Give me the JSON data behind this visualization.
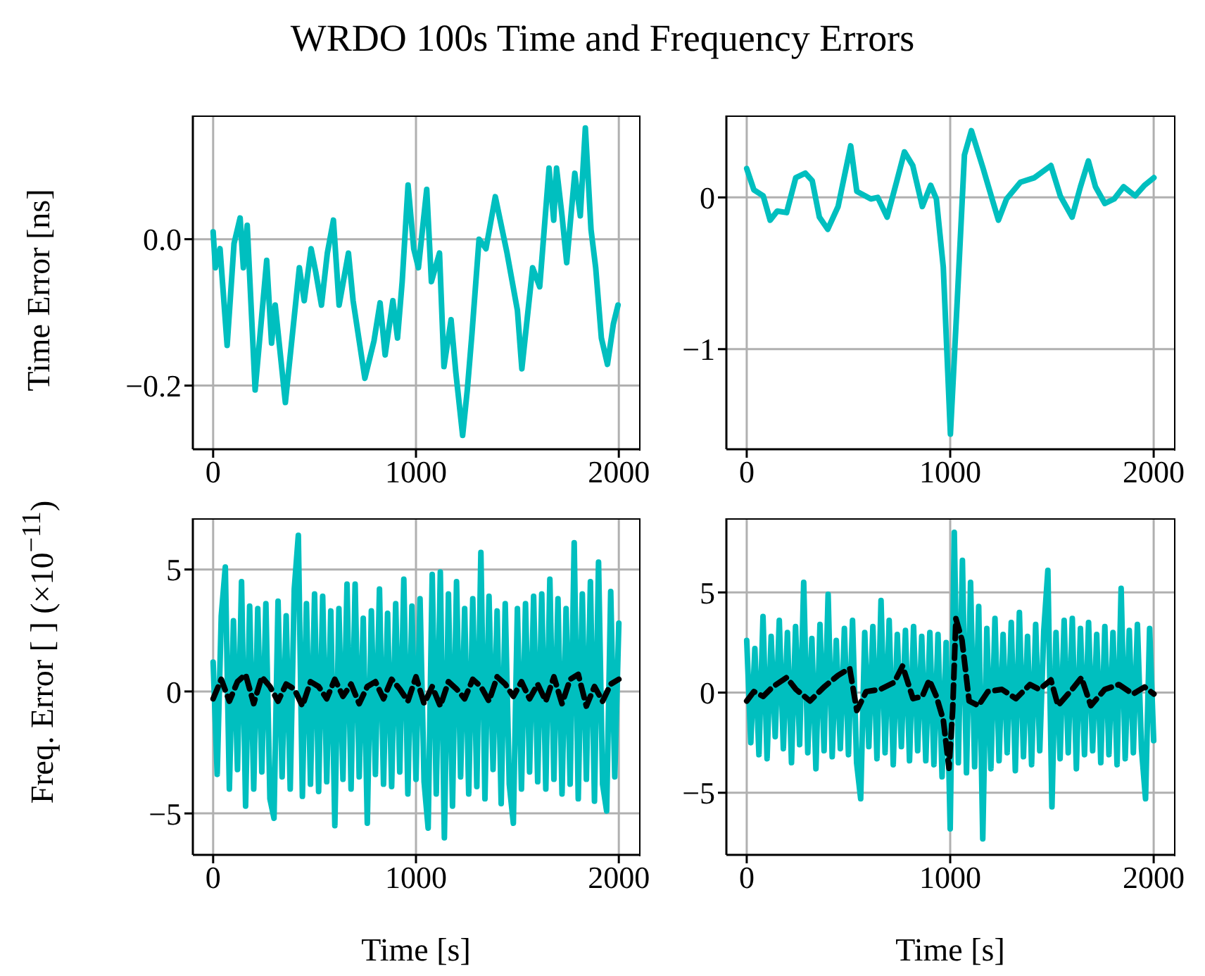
{
  "chart_data": [
    {
      "type": "line",
      "title": "WRDO 100s Time and Frequency Errors",
      "ylabel": "Time Error [ns]",
      "xlim": [
        -100,
        2100
      ],
      "xticks": [
        0,
        1000,
        2000
      ],
      "ylim": [
        -0.287,
        0.169
      ],
      "yticks": [
        {
          "value": -0.2,
          "label": "−0.2"
        },
        {
          "value": 0,
          "label": "0.0"
        }
      ],
      "grid": true,
      "series": [
        {
          "color": "#00bfbf",
          "x": [
            0,
            11,
            34,
            69,
            103,
            133,
            149,
            168,
            207,
            264,
            288,
            306,
            356,
            425,
            449,
            483,
            506,
            534,
            563,
            593,
            621,
            667,
            690,
            748,
            793,
            823,
            848,
            886,
            909,
            932,
            961,
            989,
            1012,
            1053,
            1076,
            1116,
            1138,
            1173,
            1196,
            1230,
            1253,
            1276,
            1311,
            1345,
            1391,
            1449,
            1500,
            1522,
            1575,
            1610,
            1656,
            1679,
            1693,
            1720,
            1743,
            1783,
            1810,
            1835,
            1863,
            1886,
            1914,
            1944,
            1973,
            1996
          ],
          "values": [
            0.01,
            -0.039,
            -0.013,
            -0.145,
            -0.006,
            0.029,
            -0.039,
            0.019,
            -0.206,
            -0.029,
            -0.142,
            -0.09,
            -0.223,
            -0.039,
            -0.084,
            -0.013,
            -0.045,
            -0.09,
            -0.019,
            0.026,
            -0.09,
            -0.019,
            -0.084,
            -0.19,
            -0.139,
            -0.087,
            -0.158,
            -0.084,
            -0.135,
            -0.058,
            0.074,
            -0.013,
            -0.039,
            0.068,
            -0.058,
            -0.019,
            -0.174,
            -0.11,
            -0.181,
            -0.268,
            -0.206,
            -0.129,
            0.0,
            -0.013,
            0.058,
            -0.019,
            -0.097,
            -0.177,
            -0.039,
            -0.065,
            0.097,
            0.026,
            0.097,
            0.032,
            -0.032,
            0.09,
            0.032,
            0.152,
            0.013,
            -0.039,
            -0.135,
            -0.171,
            -0.116,
            -0.09
          ]
        }
      ]
    },
    {
      "type": "line",
      "xlim": [
        -100,
        2100
      ],
      "xticks": [
        0,
        1000,
        2000
      ],
      "ylim": [
        -1.66,
        0.54
      ],
      "yticks": [
        -1,
        0
      ],
      "grid": true,
      "series": [
        {
          "color": "#00bfbf",
          "x": [
            0,
            35,
            81,
            115,
            150,
            196,
            241,
            288,
            322,
            357,
            398,
            449,
            483,
            511,
            541,
            610,
            644,
            690,
            736,
            775,
            816,
            863,
            904,
            932,
            966,
            1001,
            1035,
            1070,
            1104,
            1162,
            1208,
            1237,
            1277,
            1345,
            1414,
            1495,
            1541,
            1599,
            1640,
            1679,
            1714,
            1760,
            1806,
            1852,
            1909,
            1955,
            2001
          ],
          "values": [
            0.19,
            0.05,
            0.01,
            -0.15,
            -0.09,
            -0.1,
            0.13,
            0.16,
            0.11,
            -0.13,
            -0.21,
            -0.06,
            0.16,
            0.34,
            0.04,
            -0.01,
            0.0,
            -0.13,
            0.1,
            0.3,
            0.21,
            -0.06,
            0.08,
            -0.01,
            -0.46,
            -1.56,
            -0.67,
            0.28,
            0.44,
            0.19,
            -0.02,
            -0.15,
            -0.01,
            0.1,
            0.13,
            0.21,
            0.01,
            -0.13,
            0.07,
            0.24,
            0.07,
            -0.04,
            -0.01,
            0.07,
            0.01,
            0.08,
            0.13
          ]
        }
      ]
    },
    {
      "type": "line",
      "ylabel": "Freq. Error [ ] (×10$^{−11}$)",
      "xlabel": "Time [s]",
      "xlim": [
        -100,
        2100
      ],
      "xticks": [
        0,
        1000,
        2000
      ],
      "ylim": [
        -6.7,
        7.1
      ],
      "yticks": [
        -5,
        0,
        5
      ],
      "grid": true,
      "series": [
        {
          "color": "#00bfbf",
          "x": [
            0,
            20,
            40,
            60,
            80,
            100,
            120,
            140,
            160,
            180,
            200,
            220,
            240,
            260,
            280,
            300,
            320,
            340,
            360,
            380,
            400,
            420,
            440,
            460,
            480,
            500,
            520,
            540,
            560,
            580,
            600,
            620,
            640,
            660,
            680,
            700,
            720,
            740,
            760,
            780,
            800,
            820,
            840,
            860,
            880,
            900,
            920,
            940,
            960,
            980,
            1000,
            1020,
            1040,
            1060,
            1080,
            1100,
            1120,
            1140,
            1160,
            1180,
            1200,
            1220,
            1240,
            1260,
            1280,
            1300,
            1320,
            1340,
            1360,
            1380,
            1400,
            1420,
            1440,
            1460,
            1480,
            1500,
            1520,
            1540,
            1560,
            1580,
            1600,
            1620,
            1640,
            1660,
            1680,
            1700,
            1720,
            1740,
            1760,
            1780,
            1800,
            1820,
            1840,
            1860,
            1880,
            1900,
            1920,
            1940,
            1960,
            1980,
            2000
          ],
          "values": [
            1.2,
            -3.4,
            3.1,
            5.1,
            -4.0,
            2.9,
            -3.2,
            4.5,
            -4.7,
            3.5,
            -4.0,
            3.4,
            -3.3,
            3.6,
            -4.4,
            -5.2,
            3.7,
            -3.5,
            3.1,
            -4.0,
            4.2,
            6.4,
            -4.3,
            3.6,
            -3.8,
            4.0,
            -4.1,
            3.9,
            -3.7,
            3.3,
            -5.5,
            3.4,
            -3.6,
            4.4,
            -4.0,
            4.4,
            -3.5,
            3.0,
            -5.4,
            3.3,
            -3.4,
            4.2,
            -3.8,
            3.2,
            -3.9,
            3.6,
            -3.3,
            4.6,
            -4.2,
            3.5,
            -3.6,
            3.8,
            -3.7,
            -5.6,
            4.8,
            -4.2,
            4.9,
            -6.0,
            4.0,
            -4.7,
            4.5,
            -3.5,
            3.4,
            -4.2,
            3.8,
            -3.9,
            5.7,
            -4.4,
            3.9,
            -3.2,
            3.3,
            -4.6,
            3.6,
            -3.8,
            -5.4,
            3.4,
            -4.0,
            3.6,
            -3.3,
            3.9,
            -3.7,
            4.0,
            -4.0,
            4.6,
            -3.6,
            3.8,
            -4.2,
            3.4,
            -3.8,
            6.1,
            -4.4,
            4.0,
            -3.6,
            4.5,
            -4.5,
            5.3,
            -3.8,
            -4.9,
            4.1,
            -3.5,
            2.8
          ]
        },
        {
          "color": "#000000",
          "line_style": "dashed",
          "x": [
            0,
            40,
            80,
            120,
            160,
            200,
            240,
            280,
            320,
            360,
            400,
            440,
            480,
            520,
            560,
            600,
            640,
            680,
            720,
            760,
            800,
            840,
            880,
            920,
            960,
            1000,
            1040,
            1080,
            1120,
            1160,
            1200,
            1240,
            1280,
            1320,
            1360,
            1400,
            1440,
            1480,
            1520,
            1560,
            1600,
            1640,
            1680,
            1720,
            1760,
            1800,
            1840,
            1880,
            1920,
            1960,
            2000
          ],
          "values": [
            -0.3,
            0.5,
            -0.4,
            0.4,
            0.7,
            -0.5,
            0.6,
            0.2,
            -0.4,
            0.3,
            0.1,
            -0.6,
            0.4,
            0.2,
            -0.3,
            0.5,
            -0.2,
            0.3,
            -0.5,
            0.2,
            0.4,
            -0.3,
            0.5,
            0.1,
            -0.4,
            0.6,
            -0.5,
            0.2,
            -0.6,
            0.4,
            0.1,
            -0.3,
            0.5,
            0.2,
            -0.4,
            0.6,
            0.3,
            -0.2,
            0.4,
            -0.3,
            0.3,
            -0.4,
            0.6,
            -0.5,
            0.5,
            0.7,
            -0.6,
            0.2,
            -0.4,
            0.3,
            0.5
          ]
        }
      ]
    },
    {
      "type": "line",
      "xlabel": "Time [s]",
      "xlim": [
        -100,
        2100
      ],
      "xticks": [
        0,
        1000,
        2000
      ],
      "ylim": [
        -8.1,
        8.7
      ],
      "yticks": [
        -5,
        0,
        5
      ],
      "grid": true,
      "series": [
        {
          "color": "#00bfbf",
          "x": [
            0,
            20,
            40,
            60,
            80,
            100,
            120,
            140,
            160,
            180,
            200,
            220,
            240,
            260,
            280,
            300,
            320,
            340,
            360,
            380,
            400,
            420,
            440,
            460,
            480,
            500,
            520,
            540,
            560,
            580,
            600,
            620,
            640,
            660,
            680,
            700,
            720,
            740,
            760,
            780,
            800,
            820,
            840,
            860,
            880,
            900,
            920,
            940,
            960,
            980,
            1000,
            1020,
            1040,
            1060,
            1080,
            1100,
            1120,
            1140,
            1160,
            1180,
            1200,
            1220,
            1240,
            1260,
            1280,
            1300,
            1320,
            1340,
            1360,
            1380,
            1400,
            1420,
            1440,
            1460,
            1480,
            1500,
            1520,
            1540,
            1560,
            1580,
            1600,
            1620,
            1640,
            1660,
            1680,
            1700,
            1720,
            1740,
            1760,
            1780,
            1800,
            1820,
            1840,
            1860,
            1880,
            1900,
            1920,
            1940,
            1960,
            1980,
            2000
          ],
          "values": [
            2.6,
            -2.5,
            2.2,
            -3.1,
            3.8,
            -3.3,
            2.8,
            -2.2,
            3.6,
            -2.8,
            3.0,
            -3.5,
            3.3,
            -2.6,
            5.5,
            -3.0,
            2.7,
            -3.8,
            3.4,
            -2.9,
            4.9,
            -3.2,
            2.6,
            -2.8,
            3.2,
            -3.1,
            3.6,
            -3.5,
            -5.3,
            3.0,
            -2.7,
            3.3,
            -3.3,
            4.6,
            -3.0,
            3.6,
            -3.6,
            2.9,
            -2.7,
            3.1,
            -3.4,
            3.3,
            -2.9,
            2.8,
            -3.4,
            3.0,
            -3.6,
            2.9,
            -4.2,
            2.5,
            -6.8,
            8.0,
            -3.5,
            6.6,
            -4.0,
            5.5,
            -3.7,
            4.3,
            -7.3,
            3.2,
            -3.8,
            3.7,
            -3.4,
            2.9,
            -3.0,
            3.5,
            -3.9,
            4.0,
            -3.2,
            2.8,
            -3.6,
            3.4,
            -2.9,
            3.1,
            6.1,
            -5.7,
            3.0,
            -3.3,
            3.6,
            -3.0,
            3.7,
            -3.8,
            3.2,
            -3.1,
            3.5,
            -2.9,
            2.9,
            -3.5,
            3.3,
            -3.1,
            3.0,
            -3.6,
            5.2,
            -3.3,
            3.1,
            -3.0,
            3.4,
            -2.8,
            -5.3,
            3.2,
            -2.4
          ]
        },
        {
          "color": "#000000",
          "line_style": "dashed",
          "x": [
            0,
            35,
            81,
            127,
            196,
            242,
            311,
            380,
            449,
            506,
            541,
            587,
            656,
            725,
            766,
            817,
            863,
            897,
            932,
            966,
            994,
            1012,
            1028,
            1058,
            1093,
            1139,
            1185,
            1254,
            1323,
            1392,
            1438,
            1495,
            1530,
            1599,
            1645,
            1691,
            1760,
            1829,
            1898,
            1955,
            2001
          ],
          "values": [
            -0.42,
            0.05,
            -0.19,
            0.28,
            0.75,
            0.16,
            -0.42,
            0.28,
            0.86,
            1.21,
            -0.89,
            0.05,
            0.16,
            0.51,
            1.33,
            -0.3,
            -0.19,
            0.63,
            -0.19,
            -1.36,
            -3.78,
            -0.89,
            3.69,
            2.62,
            -0.42,
            -0.65,
            0.05,
            0.16,
            -0.3,
            0.4,
            0.16,
            0.63,
            -0.65,
            0.16,
            0.75,
            -0.65,
            0.16,
            0.4,
            -0.07,
            0.28,
            -0.07
          ]
        }
      ]
    }
  ]
}
